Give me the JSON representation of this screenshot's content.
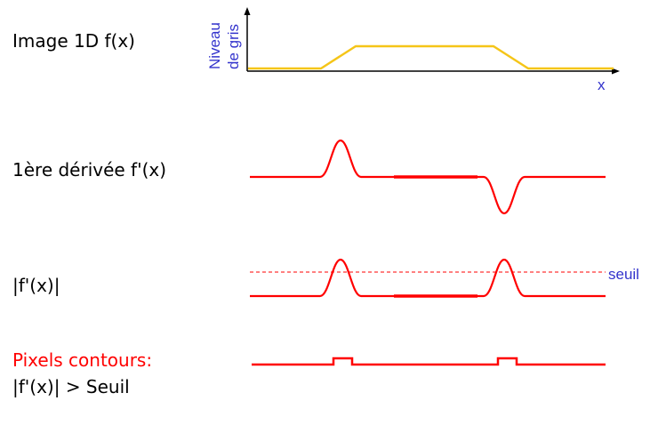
{
  "labels": {
    "image": "Image 1D  f(x)",
    "derivative": "1ère dérivée f'(x)",
    "abs": "|f'(x)|",
    "pixels_title": "Pixels contours:",
    "pixels_cond": "|f'(x)|  >  Seuil"
  },
  "axis": {
    "y_line1": "Niveau",
    "y_line2": "de gris",
    "x": "x",
    "seuil": "seuil"
  },
  "colors": {
    "signal": "#f5c518",
    "derivative": "#ff0000",
    "axis_text": "#3333cc",
    "text": "#000000",
    "red_text": "#ff0000"
  }
}
